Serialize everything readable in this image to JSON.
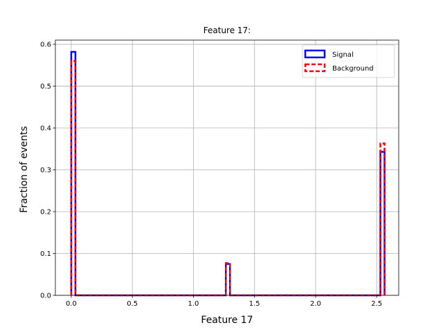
{
  "chart_data": {
    "type": "histogram-step",
    "title": "Feature 17:",
    "xlabel": "Feature 17",
    "ylabel": "Fraction of events",
    "xlim": [
      -0.13,
      2.68
    ],
    "ylim": [
      0.0,
      0.61
    ],
    "xticks": [
      0.0,
      0.5,
      1.0,
      1.5,
      2.0,
      2.5
    ],
    "xtick_labels": [
      "0.0",
      "0.5",
      "1.0",
      "1.5",
      "2.0",
      "2.5"
    ],
    "yticks": [
      0.0,
      0.1,
      0.2,
      0.3,
      0.4,
      0.5,
      0.6
    ],
    "ytick_labels": [
      "0.0",
      "0.1",
      "0.2",
      "0.3",
      "0.4",
      "0.5",
      "0.6"
    ],
    "grid": true,
    "legend_position": "top-right",
    "series": [
      {
        "name": "Signal",
        "color": "#0000ff",
        "style": "solid",
        "bars": [
          {
            "x0": 0.0,
            "x1": 0.034,
            "y": 0.582
          },
          {
            "x0": 1.265,
            "x1": 1.299,
            "y": 0.075
          },
          {
            "x0": 2.53,
            "x1": 2.564,
            "y": 0.343
          }
        ]
      },
      {
        "name": "Background",
        "color": "#ff0000",
        "style": "dashed",
        "bars": [
          {
            "x0": 0.0,
            "x1": 0.034,
            "y": 0.56
          },
          {
            "x0": 1.265,
            "x1": 1.299,
            "y": 0.077
          },
          {
            "x0": 2.53,
            "x1": 2.564,
            "y": 0.363
          }
        ]
      }
    ],
    "bin_range": [
      0.0,
      2.564
    ]
  }
}
